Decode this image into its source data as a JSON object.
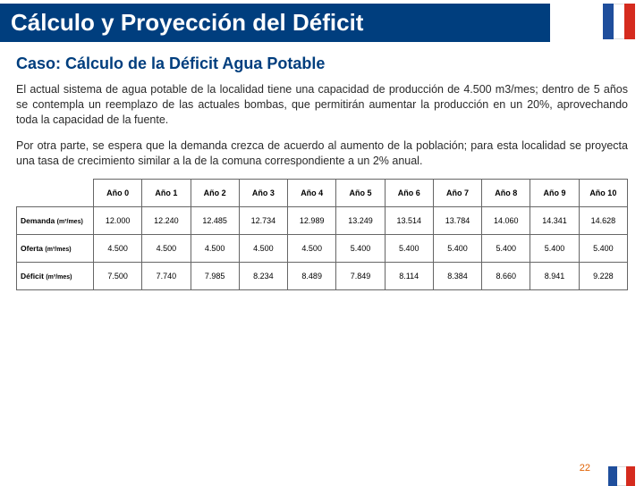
{
  "title": "Cálculo y Proyección del Déficit",
  "subtitle": "Caso: Cálculo de la Déficit Agua Potable",
  "paragraph1": "El actual sistema de agua potable de la localidad tiene una capacidad de producción de 4.500 m3/mes; dentro de 5 años se contempla un reemplazo de las actuales bombas, que permitirán aumentar la producción en un 20%, aprovechando toda la capacidad de la fuente.",
  "paragraph2": "Por otra parte, se espera que la demanda crezca de acuerdo al aumento de la población; para esta localidad se proyecta una tasa de crecimiento similar a la de la comuna correspondiente a un 2% anual.",
  "table": {
    "columns": [
      "Año 0",
      "Año 1",
      "Año 2",
      "Año 3",
      "Año 4",
      "Año 5",
      "Año 6",
      "Año 7",
      "Año 8",
      "Año 9",
      "Año 10"
    ],
    "rows": [
      {
        "label": "Demanda",
        "unit": "(m³/mes)",
        "values": [
          "12.000",
          "12.240",
          "12.485",
          "12.734",
          "12.989",
          "13.249",
          "13.514",
          "13.784",
          "14.060",
          "14.341",
          "14.628"
        ]
      },
      {
        "label": "Oferta",
        "unit": "(m³/mes)",
        "values": [
          "4.500",
          "4.500",
          "4.500",
          "4.500",
          "4.500",
          "5.400",
          "5.400",
          "5.400",
          "5.400",
          "5.400",
          "5.400"
        ]
      },
      {
        "label": "Déficit",
        "unit": "(m³/mes)",
        "values": [
          "7.500",
          "7.740",
          "7.985",
          "8.234",
          "8.489",
          "7.849",
          "8.114",
          "8.384",
          "8.660",
          "8.941",
          "9.228"
        ]
      }
    ]
  },
  "pageNumber": "22",
  "colors": {
    "titleBg": "#003e7e",
    "titleFg": "#ffffff",
    "subtitleFg": "#003e7e",
    "textFg": "#2a2a2a",
    "border": "#666666",
    "pageNum": "#e06000",
    "flagBlue": "#1f4e9c",
    "flagRed": "#d52b1e"
  }
}
